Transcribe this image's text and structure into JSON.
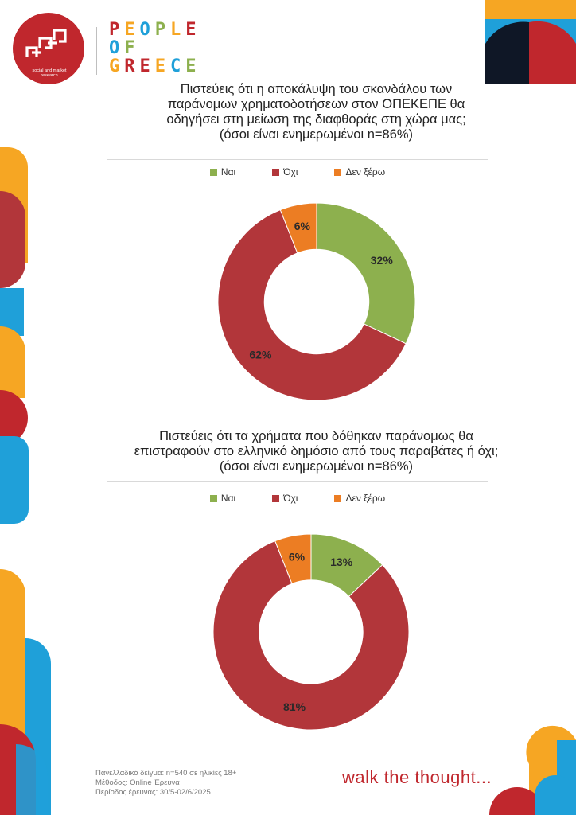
{
  "header": {
    "logo_caption": "social and market research",
    "brand_lines": [
      "PEOPLE",
      "OF",
      "GREECE"
    ]
  },
  "colors": {
    "yes": "#8db04e",
    "no": "#b2363a",
    "dont_know": "#ec7d23",
    "accent_red": "#c0272d",
    "accent_orange": "#f6a623",
    "accent_blue": "#1fa0d9",
    "accent_navy": "#0f1726"
  },
  "chart_data": [
    {
      "type": "pie",
      "title": "Πιστεύεις ότι η αποκάλυψη του σκανδάλου των παράνομων χρηματοδοτήσεων στον ΟΠΕΚΕΠΕ θα οδηγήσει στη μείωση της διαφθοράς στη χώρα μας; (όσοι είναι ενημερωμένοι n=86%)",
      "title_lines": [
        "Πιστεύεις ότι η αποκάλυψη του σκανδάλου των",
        "παράνομων χρηματοδοτήσεων στον ΟΠΕΚΕΠΕ θα",
        "οδηγήσει στη μείωση της διαφθοράς στη χώρα μας;",
        "(όσοι είναι ενημερωμένοι n=86%)"
      ],
      "categories": [
        "Ναι",
        "Όχι",
        "Δεν ξέρω"
      ],
      "values": [
        32,
        62,
        6
      ],
      "labels": [
        "32%",
        "62%",
        "6%"
      ],
      "legend": "top"
    },
    {
      "type": "pie",
      "title": "Πιστεύεις ότι τα χρήματα που δόθηκαν παράνομως θα επιστραφούν στο ελληνικό δημόσιο από τους παραβάτες ή όχι; (όσοι είναι ενημερωμένοι n=86%)",
      "title_lines": [
        "Πιστεύεις ότι τα χρήματα που δόθηκαν παράνομως θα",
        "επιστραφούν στο ελληνικό δημόσιο από τους παραβάτες ή όχι;",
        "(όσοι είναι ενημερωμένοι n=86%)"
      ],
      "categories": [
        "Ναι",
        "Όχι",
        "Δεν ξέρω"
      ],
      "values": [
        13,
        81,
        6
      ],
      "labels": [
        "13%",
        "81%",
        "6%"
      ],
      "legend": "top"
    }
  ],
  "footer": {
    "notes": [
      "Πανελλαδικό δείγμα: n=540 σε ηλικίες 18+",
      "Μέθοδος: Online Έρευνα",
      "Περίοδος έρευνας: 30/5-02/6/2025"
    ],
    "tagline": "walk the thought..."
  }
}
